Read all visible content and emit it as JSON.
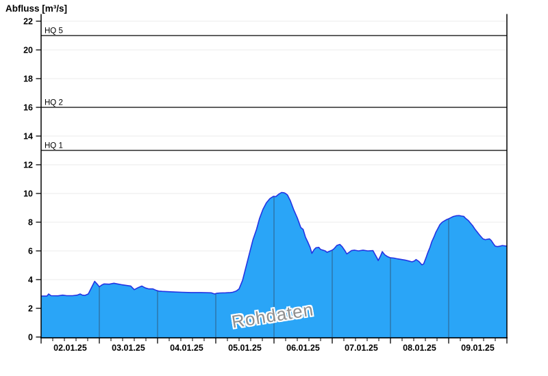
{
  "title": "Abfluss [m³/s]",
  "colors": {
    "area_fill": "#2AA5F7",
    "area_stroke": "#2333E3",
    "day_gridline": "#2E6A9A",
    "gridline": "#EBEBEB",
    "axis": "#000000",
    "hq_line": "#000000",
    "watermark_text": "#8F8F8F",
    "tick_label": "#000000"
  },
  "chart_data": {
    "type": "area",
    "title": "Abfluss [m³/s]",
    "ylabel": "Abfluss [m³/s]",
    "xlabel": "",
    "ylim": [
      0,
      22.5
    ],
    "y_ticks": [
      0,
      2,
      4,
      6,
      8,
      10,
      12,
      14,
      16,
      18,
      20,
      22
    ],
    "x_range_days": [
      0,
      8
    ],
    "x_tick_labels": [
      "02.01.25",
      "03.01.25",
      "04.01.25",
      "05.01.25",
      "06.01.25",
      "07.01.25",
      "08.01.25",
      "09.01.25"
    ],
    "minor_ticks_per_day": 4,
    "grid": "horizontal-light, vertical day lines visible only inside area fill",
    "legend_position": "none",
    "reference_lines": [
      {
        "label": "HQ 5",
        "value": 21
      },
      {
        "label": "HQ 2",
        "value": 16
      },
      {
        "label": "HQ 1",
        "value": 13
      }
    ],
    "series": [
      {
        "name": "Rohdaten",
        "unit": "m³/s",
        "x_unit": "days since 02.01.25 00:00",
        "points": [
          [
            0.0,
            2.85
          ],
          [
            0.1,
            2.85
          ],
          [
            0.13,
            3.0
          ],
          [
            0.17,
            2.88
          ],
          [
            0.29,
            2.87
          ],
          [
            0.37,
            2.92
          ],
          [
            0.44,
            2.88
          ],
          [
            0.54,
            2.88
          ],
          [
            0.62,
            2.92
          ],
          [
            0.67,
            3.0
          ],
          [
            0.71,
            2.92
          ],
          [
            0.75,
            2.9
          ],
          [
            0.81,
            3.0
          ],
          [
            0.86,
            3.4
          ],
          [
            0.92,
            3.88
          ],
          [
            0.96,
            3.7
          ],
          [
            1.0,
            3.5
          ],
          [
            1.04,
            3.62
          ],
          [
            1.08,
            3.7
          ],
          [
            1.17,
            3.68
          ],
          [
            1.25,
            3.75
          ],
          [
            1.31,
            3.7
          ],
          [
            1.38,
            3.65
          ],
          [
            1.46,
            3.6
          ],
          [
            1.54,
            3.55
          ],
          [
            1.6,
            3.3
          ],
          [
            1.67,
            3.45
          ],
          [
            1.73,
            3.55
          ],
          [
            1.79,
            3.42
          ],
          [
            1.85,
            3.35
          ],
          [
            1.92,
            3.35
          ],
          [
            1.98,
            3.25
          ],
          [
            2.02,
            3.2
          ],
          [
            2.08,
            3.18
          ],
          [
            2.25,
            3.15
          ],
          [
            2.42,
            3.12
          ],
          [
            2.58,
            3.1
          ],
          [
            2.75,
            3.1
          ],
          [
            2.92,
            3.08
          ],
          [
            2.98,
            3.0
          ],
          [
            3.02,
            3.05
          ],
          [
            3.08,
            3.07
          ],
          [
            3.17,
            3.08
          ],
          [
            3.25,
            3.1
          ],
          [
            3.29,
            3.12
          ],
          [
            3.35,
            3.2
          ],
          [
            3.4,
            3.35
          ],
          [
            3.46,
            3.95
          ],
          [
            3.52,
            4.9
          ],
          [
            3.58,
            5.85
          ],
          [
            3.64,
            6.8
          ],
          [
            3.7,
            7.5
          ],
          [
            3.75,
            8.25
          ],
          [
            3.81,
            8.9
          ],
          [
            3.87,
            9.35
          ],
          [
            3.93,
            9.65
          ],
          [
            3.99,
            9.8
          ],
          [
            4.03,
            9.78
          ],
          [
            4.08,
            9.95
          ],
          [
            4.13,
            10.07
          ],
          [
            4.17,
            10.05
          ],
          [
            4.19,
            10.02
          ],
          [
            4.23,
            9.9
          ],
          [
            4.28,
            9.5
          ],
          [
            4.34,
            8.85
          ],
          [
            4.4,
            8.3
          ],
          [
            4.46,
            7.63
          ],
          [
            4.5,
            7.5
          ],
          [
            4.54,
            6.96
          ],
          [
            4.58,
            6.62
          ],
          [
            4.62,
            6.25
          ],
          [
            4.65,
            5.83
          ],
          [
            4.69,
            6.1
          ],
          [
            4.72,
            6.22
          ],
          [
            4.77,
            6.25
          ],
          [
            4.8,
            6.1
          ],
          [
            4.84,
            6.05
          ],
          [
            4.88,
            6.0
          ],
          [
            4.91,
            5.9
          ],
          [
            4.95,
            5.97
          ],
          [
            5.0,
            6.05
          ],
          [
            5.03,
            6.15
          ],
          [
            5.08,
            6.38
          ],
          [
            5.13,
            6.45
          ],
          [
            5.17,
            6.3
          ],
          [
            5.22,
            6.0
          ],
          [
            5.25,
            5.79
          ],
          [
            5.29,
            5.9
          ],
          [
            5.33,
            6.02
          ],
          [
            5.38,
            6.05
          ],
          [
            5.45,
            6.0
          ],
          [
            5.53,
            6.05
          ],
          [
            5.61,
            6.0
          ],
          [
            5.7,
            6.02
          ],
          [
            5.73,
            5.8
          ],
          [
            5.77,
            5.5
          ],
          [
            5.79,
            5.33
          ],
          [
            5.83,
            5.65
          ],
          [
            5.86,
            5.95
          ],
          [
            5.9,
            5.74
          ],
          [
            5.95,
            5.6
          ],
          [
            6.0,
            5.52
          ],
          [
            6.06,
            5.5
          ],
          [
            6.12,
            5.45
          ],
          [
            6.19,
            5.4
          ],
          [
            6.25,
            5.36
          ],
          [
            6.31,
            5.3
          ],
          [
            6.37,
            5.24
          ],
          [
            6.41,
            5.3
          ],
          [
            6.44,
            5.4
          ],
          [
            6.49,
            5.26
          ],
          [
            6.54,
            5.03
          ],
          [
            6.57,
            5.1
          ],
          [
            6.61,
            5.52
          ],
          [
            6.64,
            5.86
          ],
          [
            6.68,
            6.26
          ],
          [
            6.71,
            6.65
          ],
          [
            6.75,
            7.0
          ],
          [
            6.78,
            7.3
          ],
          [
            6.82,
            7.6
          ],
          [
            6.85,
            7.84
          ],
          [
            6.89,
            8.0
          ],
          [
            6.93,
            8.1
          ],
          [
            6.97,
            8.19
          ],
          [
            7.0,
            8.24
          ],
          [
            7.03,
            8.3
          ],
          [
            7.08,
            8.4
          ],
          [
            7.13,
            8.45
          ],
          [
            7.18,
            8.46
          ],
          [
            7.22,
            8.43
          ],
          [
            7.26,
            8.4
          ],
          [
            7.29,
            8.27
          ],
          [
            7.34,
            8.11
          ],
          [
            7.37,
            7.95
          ],
          [
            7.41,
            7.76
          ],
          [
            7.45,
            7.52
          ],
          [
            7.49,
            7.32
          ],
          [
            7.52,
            7.16
          ],
          [
            7.56,
            6.97
          ],
          [
            7.59,
            6.84
          ],
          [
            7.63,
            6.78
          ],
          [
            7.66,
            6.81
          ],
          [
            7.7,
            6.84
          ],
          [
            7.73,
            6.73
          ],
          [
            7.77,
            6.49
          ],
          [
            7.8,
            6.33
          ],
          [
            7.84,
            6.3
          ],
          [
            7.88,
            6.33
          ],
          [
            7.92,
            6.37
          ],
          [
            8.0,
            6.33
          ]
        ]
      }
    ]
  }
}
